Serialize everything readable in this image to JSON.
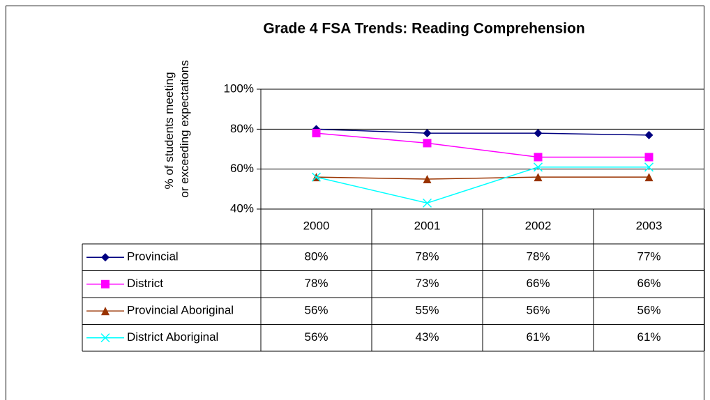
{
  "chart_data": {
    "type": "line",
    "title": "Grade 4 FSA Trends: Reading Comprehension",
    "y_label": [
      "% of students meeting",
      "or exceeding expectations"
    ],
    "categories": [
      "2000",
      "2001",
      "2002",
      "2003"
    ],
    "ylim": [
      40,
      100
    ],
    "yticks": [
      {
        "value": 40,
        "label": "40%"
      },
      {
        "value": 60,
        "label": "60%"
      },
      {
        "value": 80,
        "label": "80%"
      },
      {
        "value": 100,
        "label": "100%"
      }
    ],
    "grid": true,
    "series": [
      {
        "name": "Provincial",
        "color": "#000080",
        "marker": "diamond",
        "values": [
          80,
          78,
          78,
          77
        ],
        "value_labels": [
          "80%",
          "78%",
          "78%",
          "77%"
        ]
      },
      {
        "name": "District",
        "color": "#ff00ff",
        "marker": "square",
        "values": [
          78,
          73,
          66,
          66
        ],
        "value_labels": [
          "78%",
          "73%",
          "66%",
          "66%"
        ]
      },
      {
        "name": "Provincial Aboriginal",
        "color": "#993300",
        "marker": "triangle",
        "values": [
          56,
          55,
          56,
          56
        ],
        "value_labels": [
          "56%",
          "55%",
          "56%",
          "56%"
        ]
      },
      {
        "name": "District Aboriginal",
        "color": "#00ffff",
        "marker": "x",
        "values": [
          56,
          43,
          61,
          61
        ],
        "value_labels": [
          "56%",
          "43%",
          "61%",
          "61%"
        ]
      }
    ]
  }
}
